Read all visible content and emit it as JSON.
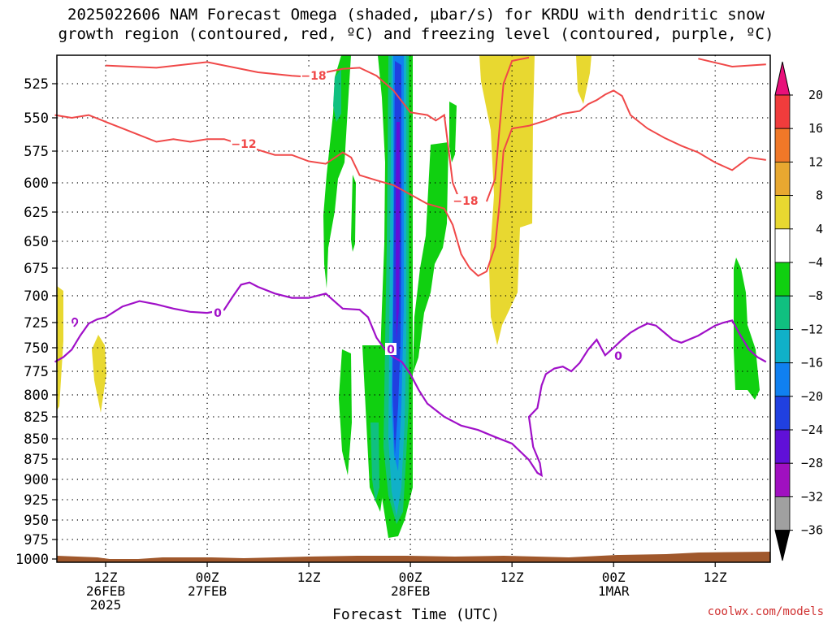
{
  "title_line1": "2025022606 NAM Forecast Omega (shaded, µbar/s) for KRDU with dendritic snow",
  "title_line2": "growth region (contoured, red, ºC) and freezing level (contoured, purple, ºC)",
  "credit": "coolwx.com/models",
  "chart_data": {
    "type": "time-height cross-section",
    "title": "2025022606 NAM Forecast Omega (shaded, µbar/s) for KRDU with dendritic snow growth region (contoured, red, ºC) and freezing level (contoured, purple, ºC)",
    "xlabel": "Forecast Time (UTC)",
    "ylabel": "",
    "x_ticks": [
      {
        "hour": 6,
        "label": [
          "12Z",
          "26FEB",
          "2025"
        ]
      },
      {
        "hour": 18,
        "label": [
          "00Z",
          "27FEB"
        ]
      },
      {
        "hour": 30,
        "label": [
          "12Z"
        ]
      },
      {
        "hour": 42,
        "label": [
          "00Z",
          "28FEB"
        ]
      },
      {
        "hour": 54,
        "label": [
          "12Z"
        ]
      },
      {
        "hour": 66,
        "label": [
          "00Z",
          "1MAR"
        ]
      },
      {
        "hour": 78,
        "label": [
          "12Z"
        ]
      }
    ],
    "x_range_hours": [
      0,
      84
    ],
    "y_ticks": [
      525,
      550,
      575,
      600,
      625,
      650,
      675,
      700,
      725,
      750,
      775,
      800,
      825,
      850,
      875,
      900,
      925,
      950,
      975,
      1000
    ],
    "y_range_hPa": [
      500,
      1005
    ],
    "grid": "dotted",
    "colorbar": {
      "labels": [
        "20",
        "16",
        "12",
        "8",
        "4",
        "−4",
        "−8",
        "−12",
        "−16",
        "−20",
        "−24",
        "−28",
        "−32",
        "−36"
      ],
      "colors": [
        "#e8107a",
        "#f03c3c",
        "#f07828",
        "#e8a830",
        "#e8d830",
        "#ffffff",
        "#10d010",
        "#10c080",
        "#10b0c8",
        "#1080f0",
        "#2040e0",
        "#6010d8",
        "#a010c0",
        "#a0a0a0",
        "#000000"
      ]
    },
    "contour_labels": {
      "red": [
        "−18",
        "−12",
        "−18"
      ],
      "purple": [
        "0",
        "0",
        "0"
      ]
    },
    "red_contours_hPa": {
      "minus12": [
        [
          0,
          548
        ],
        [
          2,
          550
        ],
        [
          4,
          548
        ],
        [
          6,
          553
        ],
        [
          8,
          558
        ],
        [
          10,
          563
        ],
        [
          12,
          568
        ],
        [
          14,
          566
        ],
        [
          16,
          568
        ],
        [
          18,
          566
        ],
        [
          20,
          566
        ],
        [
          22,
          570
        ],
        [
          24,
          574
        ],
        [
          26,
          578
        ],
        [
          28,
          578
        ],
        [
          30,
          583
        ],
        [
          32,
          585
        ],
        [
          34,
          576
        ],
        [
          35,
          580
        ],
        [
          36,
          594
        ],
        [
          38,
          598
        ],
        [
          40,
          602
        ],
        [
          42,
          610
        ],
        [
          44,
          618
        ],
        [
          45,
          620
        ],
        [
          46,
          622
        ],
        [
          47,
          636
        ],
        [
          48,
          662
        ],
        [
          49,
          675
        ],
        [
          50,
          682
        ],
        [
          51,
          678
        ],
        [
          52,
          655
        ],
        [
          52.5,
          620
        ],
        [
          53,
          575
        ],
        [
          54,
          558
        ],
        [
          56,
          556
        ],
        [
          58,
          552
        ],
        [
          60,
          547
        ],
        [
          62,
          545
        ],
        [
          63,
          540
        ],
        [
          64,
          537
        ],
        [
          65,
          533
        ],
        [
          66,
          530
        ],
        [
          67,
          534
        ],
        [
          68,
          548
        ],
        [
          70,
          558
        ],
        [
          72,
          565
        ],
        [
          74,
          571
        ],
        [
          76,
          576
        ],
        [
          78,
          584
        ],
        [
          80,
          590
        ],
        [
          82,
          580
        ],
        [
          84,
          582
        ]
      ],
      "minus18_left": [
        [
          6,
          509
        ],
        [
          12,
          511
        ],
        [
          18,
          506
        ],
        [
          24,
          515
        ],
        [
          28,
          518
        ],
        [
          30,
          519
        ],
        [
          32,
          515
        ],
        [
          34,
          512
        ],
        [
          36,
          511
        ],
        [
          38,
          518
        ],
        [
          40,
          530
        ],
        [
          42,
          546
        ],
        [
          44,
          548
        ],
        [
          45,
          552
        ],
        [
          46,
          548
        ],
        [
          47,
          600
        ],
        [
          48,
          618
        ]
      ],
      "minus18_right": [
        [
          51,
          616
        ],
        [
          52,
          597
        ],
        [
          52.5,
          560
        ],
        [
          53,
          525
        ],
        [
          54,
          505
        ],
        [
          56,
          502
        ]
      ],
      "minus18_top_right": [
        [
          76,
          503
        ],
        [
          80,
          510
        ],
        [
          84,
          508
        ]
      ]
    },
    "freezing_level_hPa": [
      [
        0,
        765
      ],
      [
        1,
        760
      ],
      [
        2,
        752
      ],
      [
        3,
        738
      ],
      [
        4,
        726
      ],
      [
        5,
        722
      ],
      [
        6,
        720
      ],
      [
        8,
        710
      ],
      [
        10,
        705
      ],
      [
        12,
        708
      ],
      [
        14,
        712
      ],
      [
        16,
        715
      ],
      [
        18,
        716
      ],
      [
        20,
        713
      ],
      [
        21,
        701
      ],
      [
        22,
        690
      ],
      [
        23,
        688
      ],
      [
        24,
        692
      ],
      [
        26,
        698
      ],
      [
        28,
        702
      ],
      [
        30,
        702
      ],
      [
        32,
        698
      ],
      [
        33,
        705
      ],
      [
        34,
        712
      ],
      [
        36,
        713
      ],
      [
        37,
        720
      ],
      [
        38,
        740
      ],
      [
        39,
        752
      ],
      [
        40,
        760
      ],
      [
        41,
        765
      ],
      [
        42,
        778
      ],
      [
        43,
        795
      ],
      [
        44,
        810
      ],
      [
        46,
        825
      ],
      [
        48,
        835
      ],
      [
        50,
        840
      ],
      [
        52,
        848
      ],
      [
        54,
        856
      ],
      [
        56,
        876
      ],
      [
        57,
        892
      ],
      [
        57.5,
        895
      ],
      [
        57.3,
        880
      ],
      [
        56.5,
        860
      ],
      [
        56,
        825
      ],
      [
        56.5,
        820
      ],
      [
        57,
        815
      ],
      [
        57.5,
        790
      ],
      [
        58,
        778
      ],
      [
        59,
        772
      ],
      [
        60,
        770
      ],
      [
        61,
        775
      ],
      [
        62,
        766
      ],
      [
        63,
        752
      ],
      [
        64,
        742
      ],
      [
        65,
        758
      ],
      [
        66,
        750
      ],
      [
        67,
        742
      ],
      [
        68,
        735
      ],
      [
        69,
        730
      ],
      [
        70,
        726
      ],
      [
        71,
        728
      ],
      [
        72,
        735
      ],
      [
        73,
        742
      ],
      [
        74,
        745
      ],
      [
        76,
        738
      ],
      [
        77,
        733
      ],
      [
        78,
        728
      ],
      [
        79,
        725
      ],
      [
        80,
        723
      ],
      [
        81,
        738
      ],
      [
        82,
        752
      ],
      [
        83,
        760
      ],
      [
        84,
        765
      ]
    ]
  }
}
